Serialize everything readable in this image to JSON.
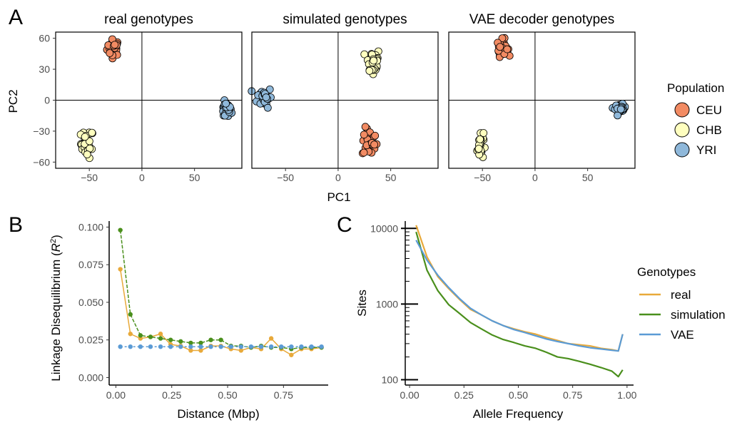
{
  "panel_letters": [
    "A",
    "B",
    "C"
  ],
  "colors": {
    "CEU": "#F28B63",
    "CHB": "#FFFFBF",
    "YRI": "#8FB8DA",
    "real": "#E8A93A",
    "simulation": "#4A8F1C",
    "VAE": "#5B9BD5"
  },
  "chart_data": [
    {
      "type": "scatter",
      "title": "real genotypes",
      "xlabel": "PC1",
      "ylabel": "PC2",
      "xlim": [
        -82,
        95
      ],
      "ylim": [
        -66,
        66
      ],
      "xticks": [
        -50,
        0,
        50
      ],
      "yticks": [
        -60,
        -30,
        0,
        30,
        60
      ],
      "grid": false,
      "legend": "right",
      "series": [
        {
          "name": "CEU",
          "center": [
            -27,
            51
          ],
          "spread": [
            6,
            8
          ],
          "n": 30
        },
        {
          "name": "CHB",
          "center": [
            -52,
            -42
          ],
          "spread": [
            6,
            14
          ],
          "n": 30
        },
        {
          "name": "YRI",
          "center": [
            80,
            -10
          ],
          "spread": [
            5,
            8
          ],
          "n": 30
        }
      ]
    },
    {
      "type": "scatter",
      "title": "simulated genotypes",
      "xlabel": "PC1",
      "ylabel": "PC2",
      "xlim": [
        -82,
        95
      ],
      "ylim": [
        -66,
        66
      ],
      "xticks": [
        -50,
        0,
        50
      ],
      "yticks": [
        -60,
        -30,
        0,
        30,
        60
      ],
      "grid": false,
      "series": [
        {
          "name": "CEU",
          "center": [
            30,
            -41
          ],
          "spread": [
            7,
            14
          ],
          "n": 30
        },
        {
          "name": "CHB",
          "center": [
            33,
            37
          ],
          "spread": [
            7,
            14
          ],
          "n": 30
        },
        {
          "name": "YRI",
          "center": [
            -70,
            3
          ],
          "spread": [
            7,
            10
          ],
          "n": 30
        }
      ]
    },
    {
      "type": "scatter",
      "title": "VAE decoder genotypes",
      "xlabel": "PC1",
      "ylabel": "PC2",
      "xlim": [
        -82,
        95
      ],
      "ylim": [
        -66,
        66
      ],
      "xticks": [
        -50,
        0,
        50
      ],
      "yticks": [
        -60,
        -30,
        0,
        30,
        60
      ],
      "grid": false,
      "series": [
        {
          "name": "CEU",
          "center": [
            -31,
            51
          ],
          "spread": [
            5,
            8
          ],
          "n": 30
        },
        {
          "name": "CHB",
          "center": [
            -52,
            -44
          ],
          "spread": [
            3,
            14
          ],
          "n": 30
        },
        {
          "name": "YRI",
          "center": [
            81,
            -8
          ],
          "spread": [
            5,
            4
          ],
          "n": 30
        }
      ]
    },
    {
      "type": "line",
      "xlabel": "Distance (Mbp)",
      "ylabel": "Linkage Disequilibrium (R²)",
      "xlim": [
        -0.03,
        0.95
      ],
      "ylim": [
        -0.005,
        0.104
      ],
      "xticks": [
        "0.00",
        "0.25",
        "0.50",
        "0.75"
      ],
      "yticks": [
        "0.000",
        "0.025",
        "0.050",
        "0.075",
        "0.100"
      ],
      "x": [
        0.02,
        0.065,
        0.11,
        0.155,
        0.2,
        0.245,
        0.29,
        0.335,
        0.38,
        0.425,
        0.47,
        0.515,
        0.56,
        0.605,
        0.65,
        0.695,
        0.74,
        0.785,
        0.83,
        0.875,
        0.92
      ],
      "series": [
        {
          "name": "real",
          "values": [
            0.072,
            0.029,
            0.026,
            0.027,
            0.029,
            0.022,
            0.021,
            0.018,
            0.018,
            0.021,
            0.021,
            0.019,
            0.018,
            0.02,
            0.019,
            0.026,
            0.019,
            0.015,
            0.019,
            0.019,
            0.02
          ]
        },
        {
          "name": "simulation",
          "values": [
            0.098,
            0.042,
            0.028,
            0.027,
            0.026,
            0.025,
            0.024,
            0.023,
            0.023,
            0.025,
            0.025,
            0.021,
            0.021,
            0.02,
            0.021,
            0.02,
            0.02,
            0.019,
            0.02,
            0.02,
            0.02
          ]
        },
        {
          "name": "VAE",
          "values": [
            0.0205,
            0.0205,
            0.0205,
            0.0205,
            0.0205,
            0.0205,
            0.0205,
            0.0205,
            0.0205,
            0.0205,
            0.0205,
            0.0205,
            0.0205,
            0.0205,
            0.0205,
            0.0205,
            0.0205,
            0.0205,
            0.0205,
            0.0205,
            0.0205
          ]
        }
      ]
    },
    {
      "type": "line",
      "xlabel": "Allele Frequency",
      "ylabel": "Sites",
      "log_y": true,
      "xlim": [
        -0.02,
        1.03
      ],
      "ylim": [
        85,
        12500
      ],
      "xticks": [
        "0.00",
        "0.25",
        "0.50",
        "0.75",
        "1.00"
      ],
      "yticks": [
        "100",
        "1000",
        "10000"
      ],
      "x": [
        0.03,
        0.08,
        0.13,
        0.18,
        0.23,
        0.28,
        0.33,
        0.38,
        0.43,
        0.48,
        0.53,
        0.58,
        0.63,
        0.68,
        0.73,
        0.78,
        0.83,
        0.88,
        0.93,
        0.96,
        0.98
      ],
      "series": [
        {
          "name": "real",
          "values": [
            11000,
            4200,
            2300,
            1600,
            1150,
            850,
            720,
            600,
            520,
            470,
            430,
            400,
            360,
            330,
            300,
            290,
            280,
            260,
            250,
            240,
            400
          ]
        },
        {
          "name": "simulation",
          "values": [
            9000,
            2800,
            1500,
            980,
            750,
            570,
            470,
            390,
            340,
            310,
            280,
            260,
            230,
            200,
            190,
            175,
            160,
            145,
            130,
            110,
            135
          ]
        },
        {
          "name": "VAE",
          "values": [
            7000,
            3800,
            2400,
            1650,
            1180,
            880,
            720,
            600,
            520,
            460,
            420,
            380,
            345,
            320,
            300,
            280,
            265,
            255,
            245,
            240,
            400
          ]
        }
      ]
    }
  ],
  "legends": {
    "population": {
      "title": "Population",
      "items": [
        "CEU",
        "CHB",
        "YRI"
      ]
    },
    "genotypes": {
      "title": "Genotypes",
      "items": [
        "real",
        "simulation",
        "VAE"
      ]
    }
  }
}
